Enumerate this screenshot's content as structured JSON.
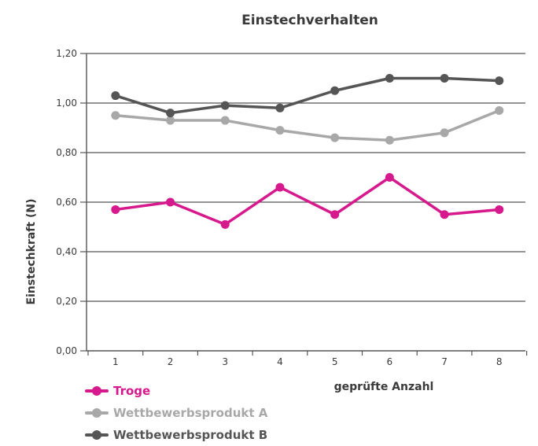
{
  "chart_data": {
    "type": "line",
    "title": "Einstechverhalten",
    "xlabel": "geprüfte Anzahl",
    "ylabel": "Einstechkraft (N)",
    "categories": [
      "1",
      "2",
      "3",
      "4",
      "5",
      "6",
      "7",
      "8"
    ],
    "yticks": [
      "0,00",
      "0,20",
      "0,40",
      "0,60",
      "0,80",
      "1,00",
      "1,20"
    ],
    "ylim": [
      0,
      1.2
    ],
    "grid": "horizontal",
    "legend_position": "bottom-left",
    "series": [
      {
        "name": "Troge",
        "color": "#d6198c",
        "values": [
          0.57,
          0.6,
          0.51,
          0.66,
          0.55,
          0.7,
          0.55,
          0.57
        ]
      },
      {
        "name": "Wettbewerbsprodukt A",
        "color": "#a8a8a8",
        "values": [
          0.95,
          0.93,
          0.93,
          0.89,
          0.86,
          0.85,
          0.88,
          0.97
        ]
      },
      {
        "name": "Wettbewerbsprodukt B",
        "color": "#555555",
        "values": [
          1.03,
          0.96,
          0.99,
          0.98,
          1.05,
          1.1,
          1.1,
          1.09
        ]
      }
    ]
  }
}
